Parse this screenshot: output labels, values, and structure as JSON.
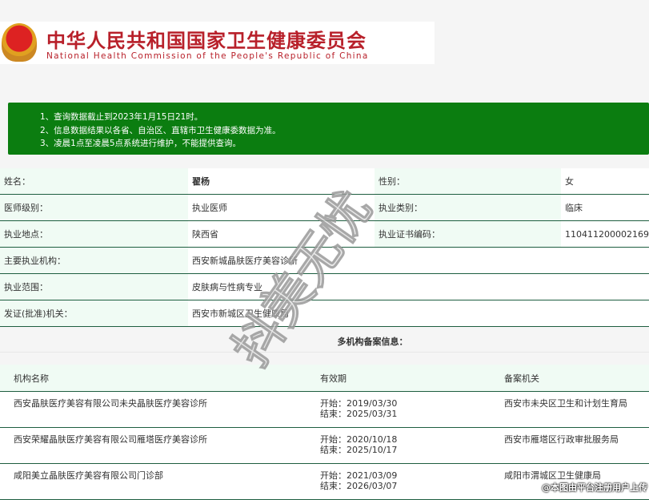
{
  "header": {
    "title_cn": "中华人民共和国国家卫生健康委员会",
    "title_en": "National Health Commission of the People's Republic of China"
  },
  "notice": [
    "1、查询数据截止到2023年1月15日21时。",
    "2、信息数据结果以各省、自治区、直辖市卫生健康委数据为准。",
    "3、凌晨1点至凌晨5点系统进行维护，不能提供查询。"
  ],
  "info": {
    "name_label": "姓名：",
    "name": "翟杨",
    "gender_label": "性别：",
    "gender": "女",
    "level_label": "医师级别：",
    "level": "执业医师",
    "category_label": "执业类别：",
    "category": "临床",
    "location_label": "执业地点：",
    "location": "陕西省",
    "cert_label": "执业证书编码：",
    "cert": "110411200002169",
    "org_label": "主要执业机构：",
    "org": "西安新城晶肤医疗美容诊所",
    "scope_label": "执业范围：",
    "scope": "皮肤病与性病专业",
    "issuer_label": "发证(批准)机关：",
    "issuer": "西安市新城区卫生健康局"
  },
  "multi": {
    "title": "多机构备案信息：",
    "headers": [
      "机构名称",
      "有效期",
      "备案机关"
    ],
    "rows": [
      {
        "name": "西安晶肤医疗美容有限公司未央晶肤医疗美容诊所",
        "start": "开始：2019/03/30",
        "end": "结束：2025/03/31",
        "authority": "西安市未央区卫生和计划生育局"
      },
      {
        "name": "西安荣耀晶肤医疗美容有限公司雁塔医疗美容诊所",
        "start": "开始：2020/10/18",
        "end": "结束：2025/10/17",
        "authority": "西安市雁塔区行政审批服务局"
      },
      {
        "name": "咸阳美立晶肤医疗美容有限公司门诊部",
        "start": "开始：2021/03/09",
        "end": "结束：2026/03/07",
        "authority": "咸阳市渭城区卫生健康局"
      }
    ]
  },
  "watermark": "抖美无忧",
  "credit": "@本图由平台注册用户上传",
  "colors": {
    "notice_bg": "#0b7d10",
    "brand_red": "#b8202a",
    "row_border": "#1e5e40"
  }
}
